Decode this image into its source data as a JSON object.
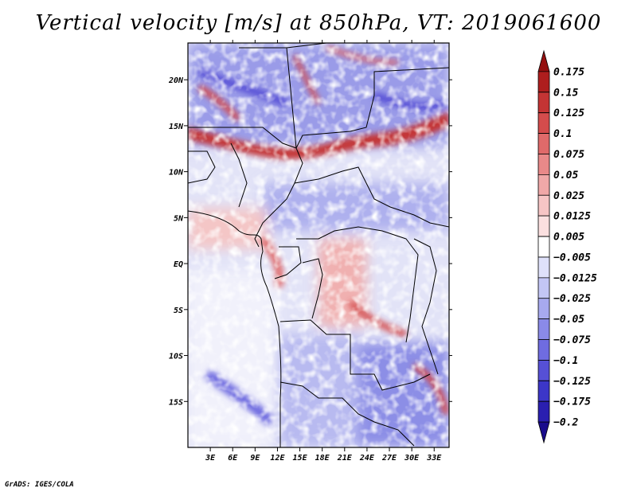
{
  "title": "Vertical velocity [m/s] at 850hPa, VT: 2019061600",
  "credit": "GrADS: IGES/COLA",
  "colors": {
    "frame": "#000000",
    "levels": [
      "#1a0c8c",
      "#2a1fb0",
      "#3c36c8",
      "#5650d6",
      "#6f6ce0",
      "#8a8ae8",
      "#a7a9ef",
      "#c3c6f5",
      "#dfe1fa",
      "#ffffff",
      "#fbe0e0",
      "#f6c5c5",
      "#f0a8a8",
      "#e98989",
      "#e06a6a",
      "#d44c4c",
      "#c43434",
      "#ae1e1e",
      "#951010"
    ]
  },
  "map": {
    "type": "heatmap",
    "variable": "Vertical velocity",
    "units": "m/s",
    "level": "850hPa",
    "valid_time": "2019061600",
    "lon_range": [
      0,
      35
    ],
    "lat_range": [
      -20,
      24
    ],
    "x_ticks": [
      "3E",
      "6E",
      "9E",
      "12E",
      "15E",
      "18E",
      "21E",
      "24E",
      "27E",
      "30E",
      "33E"
    ],
    "x_tick_values": [
      3,
      6,
      9,
      12,
      15,
      18,
      21,
      24,
      27,
      30,
      33
    ],
    "y_ticks": [
      "20N",
      "15N",
      "10N",
      "5N",
      "EQ",
      "5S",
      "10S",
      "15S"
    ],
    "y_tick_values": [
      20,
      15,
      10,
      5,
      0,
      -5,
      -10,
      -15
    ]
  },
  "colorbar": {
    "labels": [
      "0.175",
      "0.15",
      "0.125",
      "0.1",
      "0.075",
      "0.05",
      "0.025",
      "0.0125",
      "0.005",
      "−0.005",
      "−0.0125",
      "−0.025",
      "−0.05",
      "−0.075",
      "−0.1",
      "−0.125",
      "−0.175",
      "−0.2"
    ]
  }
}
